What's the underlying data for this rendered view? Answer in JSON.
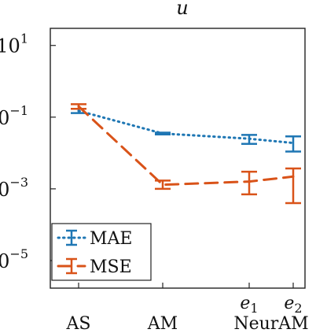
{
  "chart_data": {
    "type": "line",
    "title": "u",
    "xlabel": "",
    "ylabel": "",
    "y_scale": "log",
    "ylim": [
      1.7e-06,
      30
    ],
    "yticks": [
      {
        "value": 10,
        "base": "10",
        "exp": "1"
      },
      {
        "value": 0.1,
        "base": "10",
        "exp": "−1"
      },
      {
        "value": 0.001,
        "base": "10",
        "exp": "−3"
      },
      {
        "value": 1e-05,
        "base": "10",
        "exp": "−5"
      }
    ],
    "categories": [
      {
        "label": "AS",
        "sub": ""
      },
      {
        "label": "AM",
        "sub": ""
      },
      {
        "label": "e",
        "sub": "1"
      },
      {
        "label": "e",
        "sub": "2"
      }
    ],
    "group_label": "NeurAM",
    "series": [
      {
        "name": "MAE",
        "color": "#1f77b4",
        "dash": "dotted",
        "values": [
          0.15,
          0.035,
          0.025,
          0.019
        ],
        "err_low": [
          0.13,
          0.033,
          0.018,
          0.011
        ],
        "err_high": [
          0.17,
          0.037,
          0.032,
          0.029
        ]
      },
      {
        "name": "MSE",
        "color": "#d95319",
        "dash": "dashed",
        "values": [
          0.2,
          0.0013,
          0.0016,
          0.0022
        ],
        "err_low": [
          0.17,
          0.001,
          0.0007,
          0.0004
        ],
        "err_high": [
          0.23,
          0.0017,
          0.003,
          0.0037
        ]
      }
    ],
    "legend": {
      "position": "bottom-left"
    },
    "grid": false
  }
}
